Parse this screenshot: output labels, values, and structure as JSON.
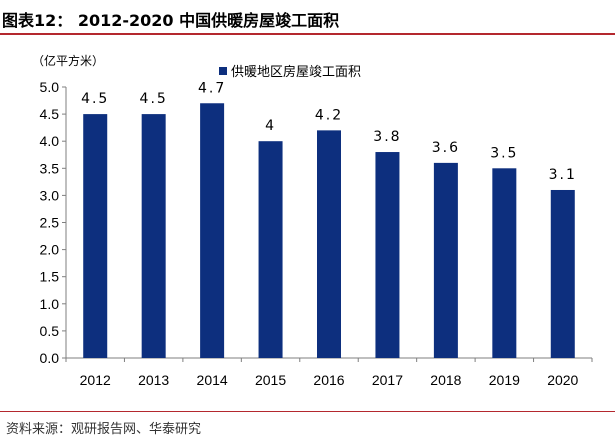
{
  "figure": {
    "title": "图表12： 2012-2020 中国供暖房屋竣工面积",
    "source": "资料来源：观研报告网、华泰研究"
  },
  "colors": {
    "bar": "#0d2f7e",
    "accent_rule": "#b4282e",
    "axis": "#7f7f7f"
  },
  "chart_data": {
    "type": "bar",
    "unit_label": "（亿平方米）",
    "categories": [
      "2012",
      "2013",
      "2014",
      "2015",
      "2016",
      "2017",
      "2018",
      "2019",
      "2020"
    ],
    "series": [
      {
        "name": "供暖地区房屋竣工面积",
        "values": [
          4.5,
          4.5,
          4.7,
          4.0,
          4.2,
          3.8,
          3.6,
          3.5,
          3.1
        ],
        "labels": [
          "4.5",
          "4.5",
          "4.7",
          "4",
          "4.2",
          "3.8",
          "3.6",
          "3.5",
          "3.1"
        ]
      }
    ],
    "ylim": [
      0,
      5.0
    ],
    "yticks": [
      "0.0",
      "0.5",
      "1.0",
      "1.5",
      "2.0",
      "2.5",
      "3.0",
      "3.5",
      "4.0",
      "4.5",
      "5.0"
    ],
    "grid": false,
    "legend_position": "top-center"
  }
}
